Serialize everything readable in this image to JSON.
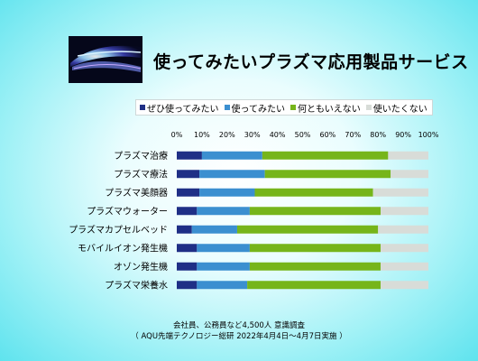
{
  "title": "使ってみたいプラズマ応用製品サービス",
  "notes": {
    "line1": "会社員、公務員など4,500人  意識調査",
    "line2": "（  AQU先端テクノロジー総研  2022年4月4日～4月7日実施  ）"
  },
  "chart_data": {
    "type": "bar",
    "orientation": "horizontal",
    "stacked": true,
    "percent_stacked": true,
    "legend_position": "top",
    "xlim": [
      0,
      100
    ],
    "x_ticks": [
      "0%",
      "10%",
      "20%",
      "30%",
      "40%",
      "50%",
      "60%",
      "70%",
      "80%",
      "90%",
      "100%"
    ],
    "grid": false,
    "categories": [
      "プラズマ治療",
      "プラズマ療法",
      "プラズマ美顔器",
      "プラズマウォーター",
      "プラズマカプセルベッド",
      "モバイルイオン発生機",
      "オゾン発生機",
      "プラズマ栄養水"
    ],
    "series": [
      {
        "name": "ぜひ使ってみたい",
        "color": "#1f2f86",
        "values": [
          10,
          9,
          9,
          8,
          6,
          8,
          8,
          8
        ]
      },
      {
        "name": "使ってみたい",
        "color": "#3b8fd0",
        "values": [
          24,
          26,
          22,
          21,
          18,
          21,
          21,
          20
        ]
      },
      {
        "name": "何ともいえない",
        "color": "#76b51a",
        "values": [
          50,
          50,
          47,
          52,
          56,
          52,
          52,
          53
        ]
      },
      {
        "name": "使いたくない",
        "color": "#d8dcd8",
        "values": [
          16,
          15,
          22,
          19,
          20,
          19,
          19,
          19
        ]
      }
    ]
  }
}
